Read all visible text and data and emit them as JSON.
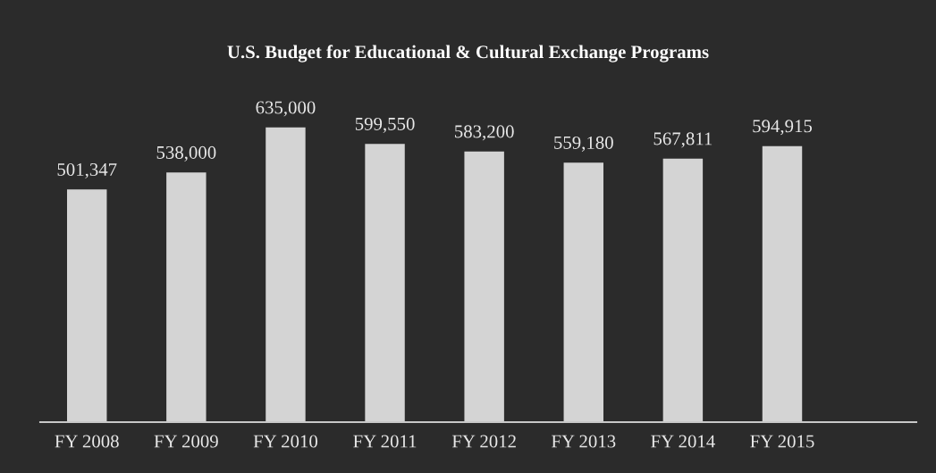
{
  "chart_data": {
    "type": "bar",
    "title": "U.S. Budget for Educational & Cultural Exchange Programs",
    "categories": [
      "FY 2008",
      "FY 2009",
      "FY 2010",
      "FY 2011",
      "FY 2012",
      "FY 2013",
      "FY 2014",
      "FY 2015"
    ],
    "values": [
      501347,
      538000,
      635000,
      599550,
      583200,
      559180,
      567811,
      594915
    ],
    "value_labels": [
      "501,347",
      "538,000",
      "635,000",
      "599,550",
      "583,200",
      "559,180",
      "567,811",
      "594,915"
    ],
    "color": "#d4d4d4",
    "grid": false,
    "legend": false
  }
}
